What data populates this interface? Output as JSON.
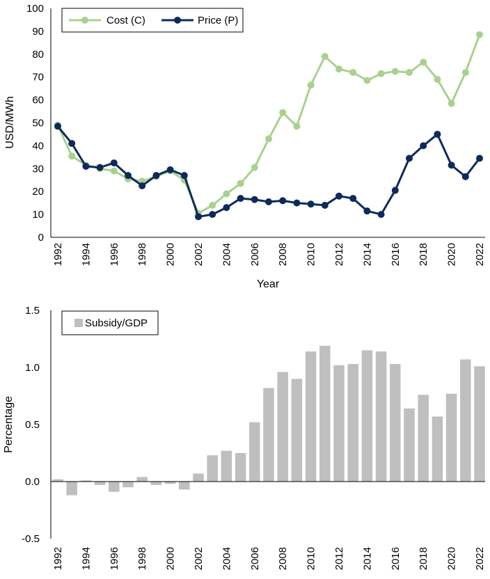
{
  "chart_data": [
    {
      "type": "line",
      "title": "",
      "xlabel": "Year",
      "ylabel": "USD/MWh",
      "ylim": [
        0,
        100
      ],
      "yticks": [
        "0",
        "10",
        "20",
        "30",
        "40",
        "50",
        "60",
        "70",
        "80",
        "90",
        "100"
      ],
      "x": [
        1992,
        1993,
        1994,
        1995,
        1996,
        1997,
        1998,
        1999,
        2000,
        2001,
        2002,
        2003,
        2004,
        2005,
        2006,
        2007,
        2008,
        2009,
        2010,
        2011,
        2012,
        2013,
        2014,
        2015,
        2016,
        2017,
        2018,
        2019,
        2020,
        2021,
        2022
      ],
      "xtick_labels": [
        "1992",
        "1994",
        "1996",
        "1998",
        "2000",
        "2002",
        "2004",
        "2006",
        "2008",
        "2010",
        "2012",
        "2014",
        "2016",
        "2018",
        "2020",
        "2022"
      ],
      "legend_position": "top-left",
      "series": [
        {
          "name": "Cost (C)",
          "color": "#a9d18e",
          "values": [
            49,
            35.5,
            31.5,
            30,
            29,
            25.5,
            24.5,
            26.5,
            29,
            25,
            10.5,
            14,
            19,
            23.5,
            30.5,
            43,
            54.5,
            48.5,
            66.5,
            79,
            73.5,
            72,
            68.5,
            71.5,
            72.5,
            72,
            76.5,
            69,
            58.5,
            72,
            88.5
          ]
        },
        {
          "name": "Price (P)",
          "color": "#0d2a5c",
          "values": [
            48.5,
            41,
            31,
            30.5,
            32.5,
            27,
            22.5,
            27,
            29.5,
            27,
            9,
            10,
            13,
            17,
            16.5,
            15.5,
            16,
            15,
            14.5,
            14,
            18,
            17,
            11.5,
            10,
            20.5,
            34.5,
            40,
            45,
            31.5,
            26.5,
            34.5
          ]
        }
      ]
    },
    {
      "type": "bar",
      "title": "",
      "xlabel": "",
      "ylabel": "Percentage",
      "ylim": [
        -0.5,
        1.5
      ],
      "yticks": [
        "-0.5",
        "0.0",
        "0.5",
        "1.0",
        "1.5"
      ],
      "categories": [
        1992,
        1993,
        1994,
        1995,
        1996,
        1997,
        1998,
        1999,
        2000,
        2001,
        2002,
        2003,
        2004,
        2005,
        2006,
        2007,
        2008,
        2009,
        2010,
        2011,
        2012,
        2013,
        2014,
        2015,
        2016,
        2017,
        2018,
        2019,
        2020,
        2021,
        2022
      ],
      "xtick_labels": [
        "1992",
        "1994",
        "1996",
        "1998",
        "2000",
        "2002",
        "2004",
        "2006",
        "2008",
        "2010",
        "2012",
        "2014",
        "2016",
        "2018",
        "2020",
        "2022"
      ],
      "legend_position": "top-left",
      "series": [
        {
          "name": "Subsidy/GDP",
          "color": "#bfbfbf",
          "values": [
            0.02,
            -0.12,
            0.01,
            -0.03,
            -0.09,
            -0.05,
            0.04,
            -0.03,
            -0.02,
            -0.07,
            0.07,
            0.23,
            0.27,
            0.25,
            0.52,
            0.82,
            0.96,
            0.9,
            1.14,
            1.19,
            1.02,
            1.03,
            1.15,
            1.14,
            1.03,
            0.64,
            0.76,
            0.57,
            0.77,
            1.07,
            1.01
          ]
        }
      ]
    }
  ]
}
